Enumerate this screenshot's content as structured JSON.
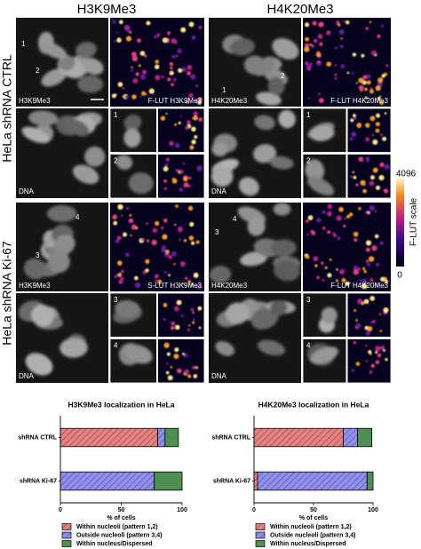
{
  "figure": {
    "column_titles": [
      "H3K9Me3",
      "H4K20Me3"
    ],
    "row_titles": [
      "HeLa shRNA CTRL",
      "HeLa shRNA Ki-67"
    ],
    "panels": [
      {
        "numbers": [
          "1",
          "2"
        ],
        "marker": "H3K9Me3",
        "lut": "F-LUT H3K9Me3",
        "dna": "DNA",
        "insets": [
          "1",
          "2"
        ]
      },
      {
        "numbers": [
          "1",
          "2"
        ],
        "marker": "H4K20Me3",
        "lut": "F-LUT H4K20Me3",
        "dna": "DNA",
        "insets": [
          "1",
          "2"
        ]
      },
      {
        "numbers": [
          "4",
          "3"
        ],
        "marker": "H3K9Me3",
        "lut": "S-LUT H3K9Me3",
        "dna": "DNA",
        "insets": [
          "3",
          "4"
        ]
      },
      {
        "numbers": [
          "4",
          "3"
        ],
        "marker": "H4K20Me3",
        "lut": "F-LUT H4K20Me3",
        "dna": "DNA",
        "insets": [
          "3",
          "4"
        ]
      }
    ],
    "colorbar": {
      "title": "F-LUT scale",
      "ticks": [
        4096,
        0
      ]
    }
  },
  "chart_data": [
    {
      "type": "bar",
      "orientation": "horizontal",
      "stacked": true,
      "title": "H3K9Me3 localization in HeLa",
      "categories": [
        "shRNA CTRL",
        "shRNA Ki-67"
      ],
      "series": [
        {
          "name": "Within nucleoli (pattern 1,2)",
          "color": "#e97f7f",
          "hatched": true,
          "values": [
            80,
            0
          ]
        },
        {
          "name": "Outside nucleoli (pattern 3,4)",
          "color": "#8f8ff2",
          "hatched": true,
          "values": [
            6,
            77
          ]
        },
        {
          "name": "Within nucleus/Dispersed",
          "color": "#4f8f52",
          "hatched": false,
          "values": [
            11,
            23
          ]
        }
      ],
      "xlim": [
        0,
        100
      ],
      "xticks": [
        0,
        50,
        100
      ],
      "xlabel": "% of cells"
    },
    {
      "type": "bar",
      "orientation": "horizontal",
      "stacked": true,
      "title": "H4K20Me3 localization in HeLa",
      "categories": [
        "shRNA CTRL",
        "shRNA Ki-67"
      ],
      "series": [
        {
          "name": "Within nucleoli (pattern 1,2)",
          "color": "#e97f7f",
          "hatched": true,
          "values": [
            75,
            3
          ]
        },
        {
          "name": "Outside nucleoli (pattern 3,4)",
          "color": "#8f8ff2",
          "hatched": true,
          "values": [
            12,
            92
          ]
        },
        {
          "name": "Within nucleus/Dispersed",
          "color": "#4f8f52",
          "hatched": false,
          "values": [
            12,
            5
          ]
        }
      ],
      "xlim": [
        0,
        100
      ],
      "xticks": [
        0,
        50,
        100
      ],
      "xlabel": "% of cells"
    }
  ]
}
